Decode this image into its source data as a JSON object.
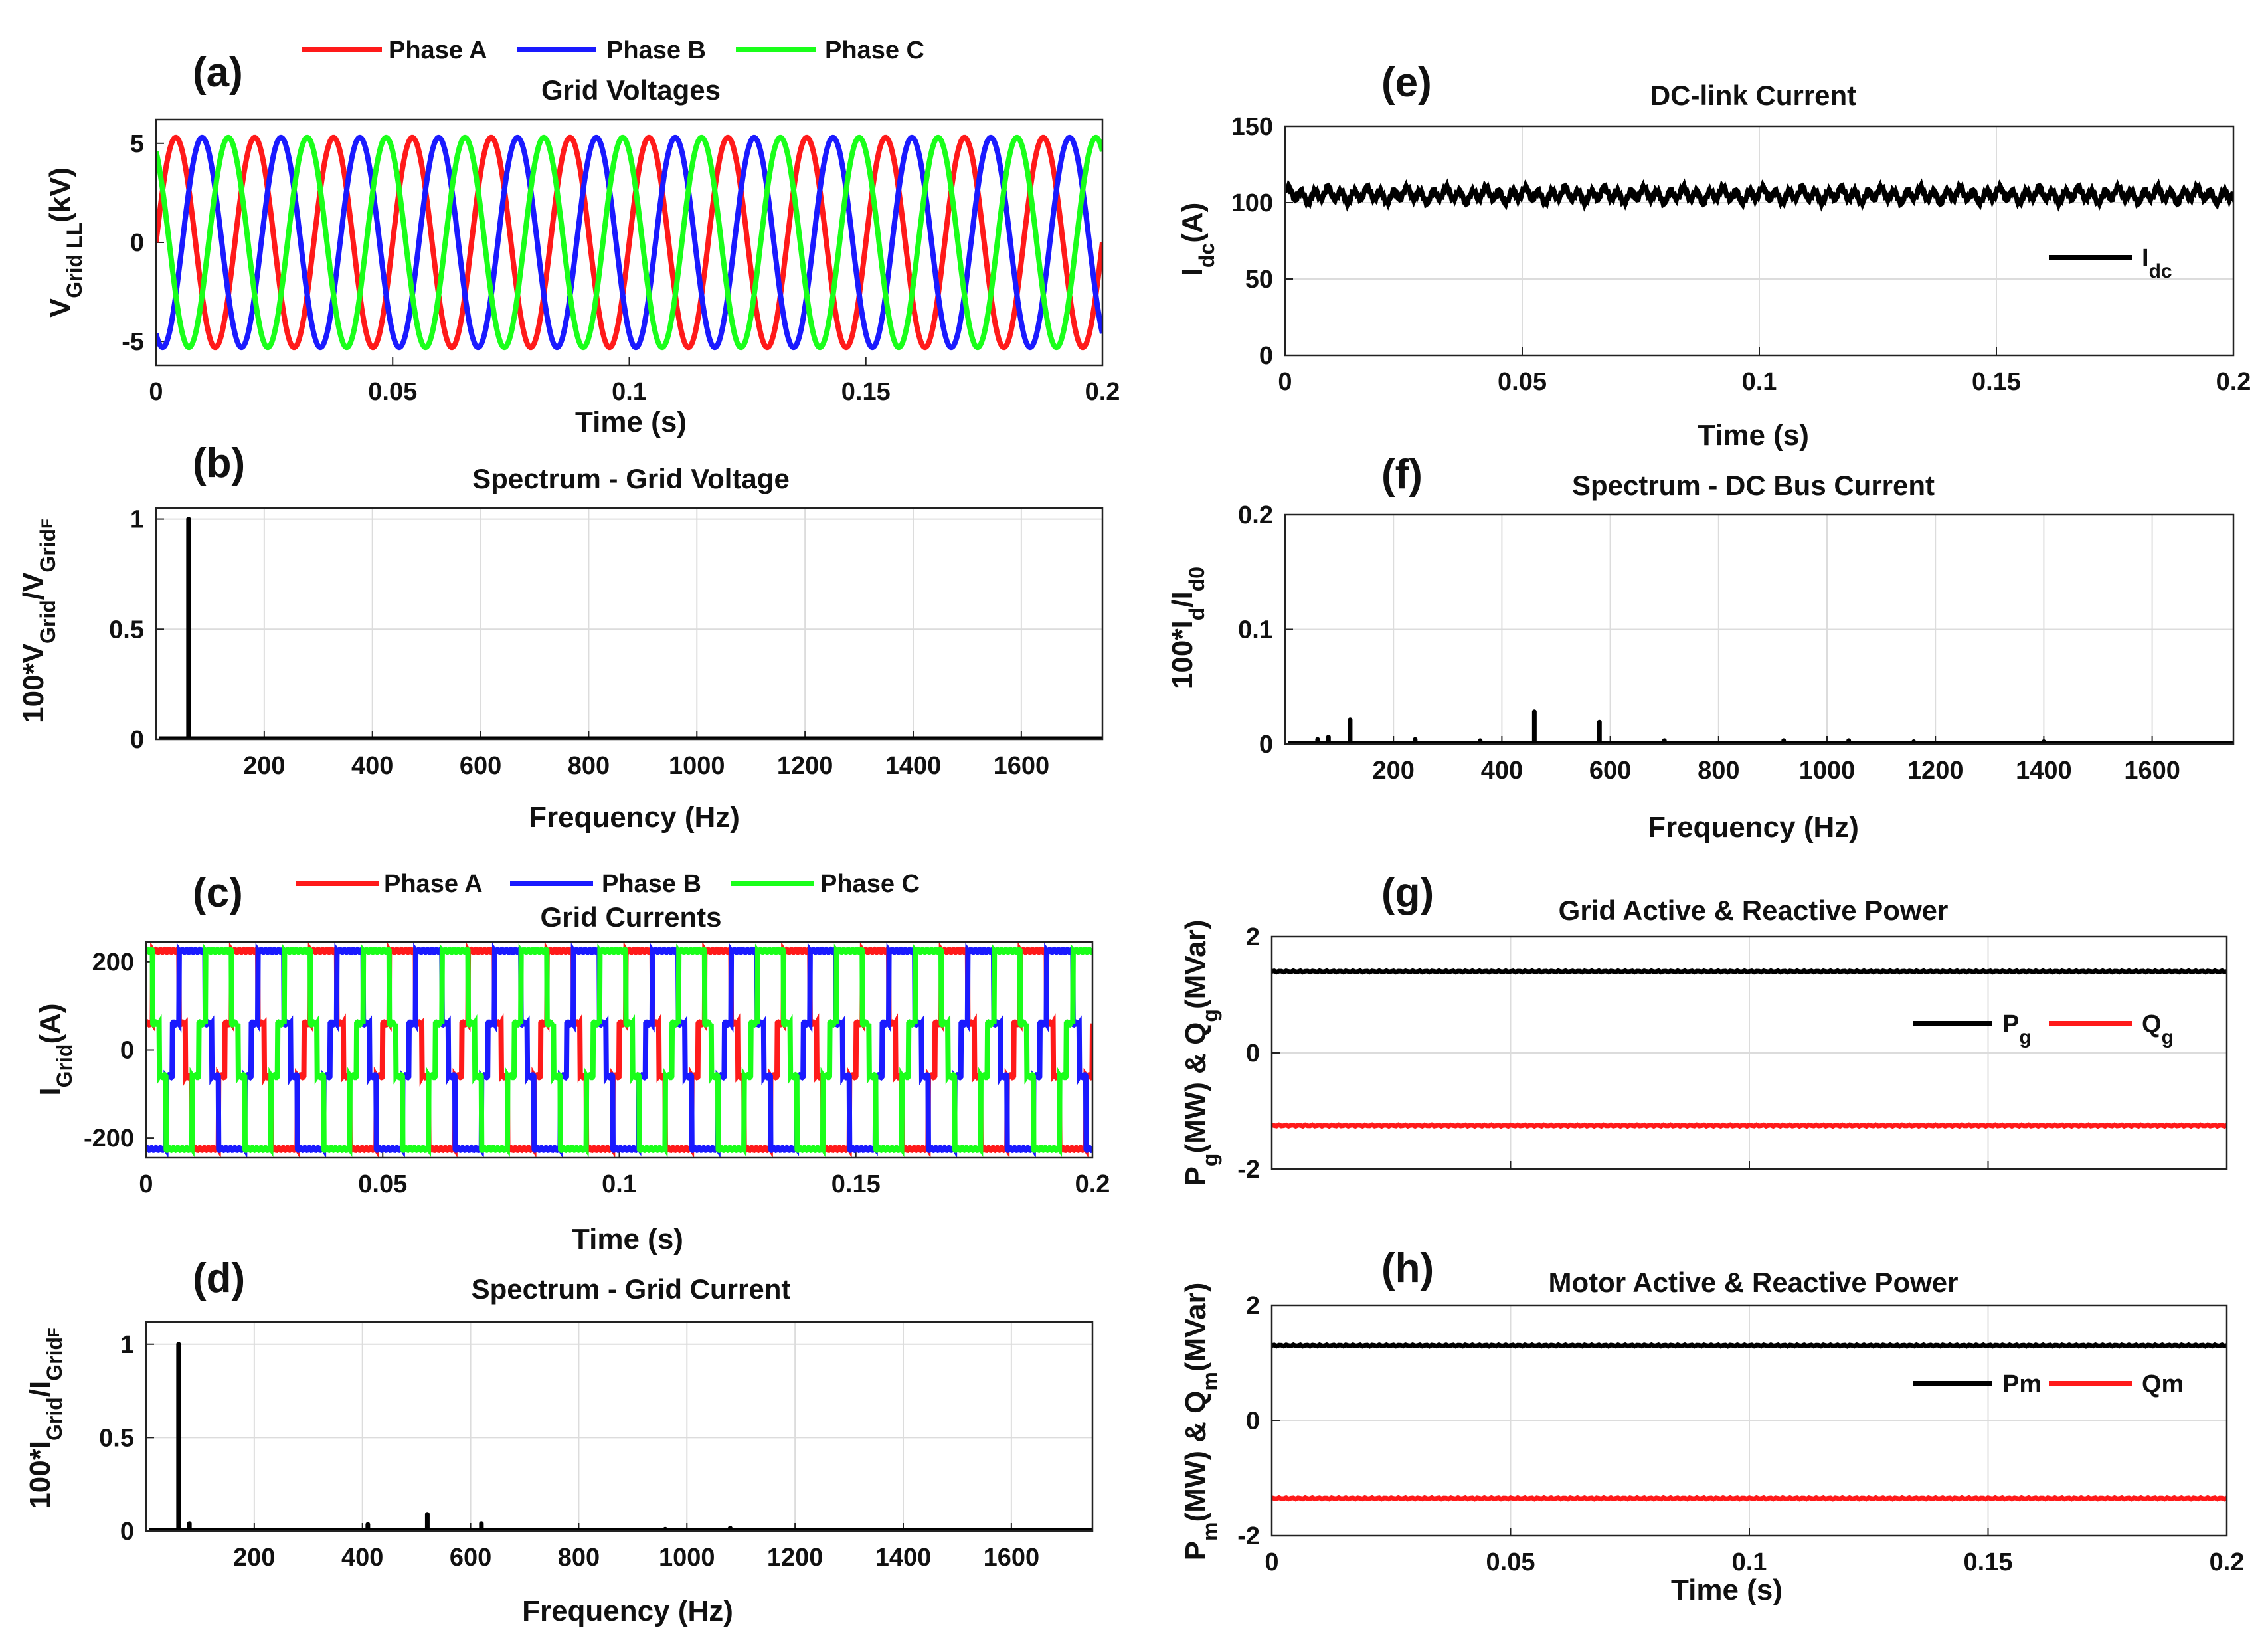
{
  "chart_data": [
    {
      "id": "a",
      "type": "line",
      "panel_label": "(a)",
      "title": "Grid Voltages",
      "ylabel": "V",
      "ylabel_sub": "Grid LL",
      "ylabel_tail": "(kV)",
      "xlabel": "Time (s)",
      "xlim": [
        0,
        0.2
      ],
      "ylim": [
        -6.2,
        6.2
      ],
      "xticks": [
        0,
        0.05,
        0.1,
        0.15,
        0.2
      ],
      "yticks": [
        -5,
        0,
        5
      ],
      "xtick_labels": [
        "0",
        "0.05",
        "0.1",
        "0.15",
        "0.2"
      ],
      "ytick_labels": [
        "-5",
        "0",
        "5"
      ],
      "grid": false,
      "signal": {
        "kind": "three_phase_sine",
        "amplitude": 5.3,
        "frequency_hz": 60,
        "phase_offsets_deg": [
          0,
          -120,
          120
        ]
      },
      "series": [
        {
          "name": "Phase A",
          "color": "#ff1a1a"
        },
        {
          "name": "Phase B",
          "color": "#1a1aff"
        },
        {
          "name": "Phase C",
          "color": "#1aff1a"
        }
      ],
      "legend_position": "top (outside, horizontal)"
    },
    {
      "id": "b",
      "type": "bar",
      "panel_label": "(b)",
      "title": "Spectrum - Grid Voltage",
      "ylabel": "100*V",
      "ylabel_sub": "Grid",
      "ylabel_mid": "/V",
      "ylabel_sub2": "Grid",
      "ylabel_sub3": "F",
      "xlabel": "Frequency (Hz)",
      "xlim": [
        0,
        1750
      ],
      "ylim": [
        0,
        1.05
      ],
      "xticks": [
        200,
        400,
        600,
        800,
        1000,
        1200,
        1400,
        1600
      ],
      "yticks": [
        0,
        0.5,
        1
      ],
      "xtick_labels": [
        "200",
        "400",
        "600",
        "800",
        "1000",
        "1200",
        "1400",
        "1600"
      ],
      "ytick_labels": [
        "0",
        "0.5",
        "1"
      ],
      "grid": true,
      "color": "#000000",
      "harmonics": [
        {
          "f": 60,
          "v": 1.0
        }
      ]
    },
    {
      "id": "c",
      "type": "line",
      "panel_label": "(c)",
      "title": "Grid Currents",
      "ylabel": "I",
      "ylabel_sub": "Grid",
      "ylabel_tail": "(A)",
      "xlabel": "Time (s)",
      "xlim": [
        0,
        0.2
      ],
      "ylim": [
        -245,
        245
      ],
      "xticks": [
        0,
        0.05,
        0.1,
        0.15,
        0.2
      ],
      "yticks": [
        -200,
        0,
        200
      ],
      "xtick_labels": [
        "0",
        "0.05",
        "0.1",
        "0.15",
        "0.2"
      ],
      "ytick_labels": [
        "-200",
        "0",
        "200"
      ],
      "grid": false,
      "signal": {
        "kind": "three_phase_six_step",
        "levels_A": [
          0,
          60,
          225
        ],
        "frequency_hz": 60,
        "phase_offsets_deg": [
          0,
          -120,
          120
        ]
      },
      "series": [
        {
          "name": "Phase A",
          "color": "#ff1a1a"
        },
        {
          "name": "Phase B",
          "color": "#1a1aff"
        },
        {
          "name": "Phase C",
          "color": "#1aff1a"
        }
      ],
      "legend_position": "top (outside, horizontal)"
    },
    {
      "id": "d",
      "type": "bar",
      "panel_label": "(d)",
      "title": "Spectrum - Grid Current",
      "ylabel": "100*I",
      "ylabel_sub": "Grid",
      "ylabel_mid": "/I",
      "ylabel_sub2": "Grid",
      "ylabel_sub3": "F",
      "xlabel": "Frequency (Hz)",
      "xlim": [
        0,
        1750
      ],
      "ylim": [
        0,
        1.12
      ],
      "xticks": [
        200,
        400,
        600,
        800,
        1000,
        1200,
        1400,
        1600
      ],
      "yticks": [
        0,
        0.5,
        1
      ],
      "xtick_labels": [
        "200",
        "400",
        "600",
        "800",
        "1000",
        "1200",
        "1400",
        "1600"
      ],
      "ytick_labels": [
        "0",
        "0.5",
        "1"
      ],
      "grid": true,
      "color": "#000000",
      "harmonics": [
        {
          "f": 60,
          "v": 1.0
        },
        {
          "f": 80,
          "v": 0.04
        },
        {
          "f": 410,
          "v": 0.035
        },
        {
          "f": 520,
          "v": 0.09
        },
        {
          "f": 620,
          "v": 0.04
        },
        {
          "f": 960,
          "v": 0.01
        },
        {
          "f": 1080,
          "v": 0.015
        }
      ]
    },
    {
      "id": "e",
      "type": "line",
      "panel_label": "(e)",
      "title": "DC-link Current",
      "ylabel": "I",
      "ylabel_sub": "dc",
      "ylabel_tail": "(A)",
      "xlabel": "Time (s)",
      "xlim": [
        0,
        0.2
      ],
      "ylim": [
        0,
        150
      ],
      "xticks": [
        0,
        0.05,
        0.1,
        0.15,
        0.2
      ],
      "yticks": [
        0,
        50,
        100,
        150
      ],
      "xtick_labels": [
        "0",
        "0.05",
        "0.1",
        "0.15",
        "0.2"
      ],
      "ytick_labels": [
        "0",
        "50",
        "100",
        "150"
      ],
      "grid": true,
      "signal": {
        "kind": "dc_with_ripple",
        "mean": 105,
        "ripple_amplitude": 6
      },
      "series": [
        {
          "name": "I",
          "name_sub": "dc",
          "color": "#000000"
        }
      ],
      "legend_position": "right, inside"
    },
    {
      "id": "f",
      "type": "bar",
      "panel_label": "(f)",
      "title": "Spectrum - DC Bus Current",
      "ylabel": "100*I",
      "ylabel_sub": "d",
      "ylabel_mid": "/I",
      "ylabel_sub2": "d0",
      "xlabel": "Frequency (Hz)",
      "xlim": [
        0,
        1750
      ],
      "ylim": [
        0,
        0.2
      ],
      "xticks": [
        200,
        400,
        600,
        800,
        1000,
        1200,
        1400,
        1600
      ],
      "yticks": [
        0,
        0.1,
        0.2
      ],
      "xtick_labels": [
        "200",
        "400",
        "600",
        "800",
        "1000",
        "1200",
        "1400",
        "1600"
      ],
      "ytick_labels": [
        "0",
        "0.1",
        "0.2"
      ],
      "grid": true,
      "color": "#000000",
      "harmonics": [
        {
          "f": 60,
          "v": 0.004
        },
        {
          "f": 80,
          "v": 0.006
        },
        {
          "f": 120,
          "v": 0.021
        },
        {
          "f": 240,
          "v": 0.004
        },
        {
          "f": 360,
          "v": 0.003
        },
        {
          "f": 460,
          "v": 0.028
        },
        {
          "f": 580,
          "v": 0.019
        },
        {
          "f": 700,
          "v": 0.003
        },
        {
          "f": 920,
          "v": 0.003
        },
        {
          "f": 1040,
          "v": 0.003
        },
        {
          "f": 1160,
          "v": 0.002
        },
        {
          "f": 1400,
          "v": 0.002
        }
      ]
    },
    {
      "id": "g",
      "type": "line",
      "panel_label": "(g)",
      "title": "Grid Active & Reactive Power",
      "ylabel": "P",
      "ylabel_sub": "g",
      "ylabel_mid": "(MW) & Q",
      "ylabel_sub2": "g",
      "ylabel_tail": "(MVar)",
      "xlabel": "",
      "xlim": [
        0,
        0.2
      ],
      "ylim": [
        -2,
        2
      ],
      "xticks": [
        0,
        0.05,
        0.1,
        0.15,
        0.2
      ],
      "yticks": [
        -2,
        0,
        2
      ],
      "xtick_labels": [],
      "ytick_labels": [
        "-2",
        "0",
        "2"
      ],
      "grid": true,
      "series": [
        {
          "name": "P",
          "name_sub": "g",
          "value": 1.4,
          "color": "#000000"
        },
        {
          "name": "Q",
          "name_sub": "g",
          "value": -1.25,
          "color": "#ff1a1a"
        }
      ],
      "legend_position": "right, inside"
    },
    {
      "id": "h",
      "type": "line",
      "panel_label": "(h)",
      "title": "Motor Active & Reactive Power",
      "ylabel": "P",
      "ylabel_sub": "m",
      "ylabel_mid": "(MW) & Q",
      "ylabel_sub2": "m",
      "ylabel_tail": "(MVar)",
      "xlabel": "Time (s)",
      "xlim": [
        0,
        0.2
      ],
      "ylim": [
        -2,
        2
      ],
      "xticks": [
        0,
        0.05,
        0.1,
        0.15,
        0.2
      ],
      "yticks": [
        -2,
        0,
        2
      ],
      "xtick_labels": [
        "0",
        "0.05",
        "0.1",
        "0.15",
        "0.2"
      ],
      "ytick_labels": [
        "-2",
        "0",
        "2"
      ],
      "grid": true,
      "series": [
        {
          "name": "Pm",
          "value": 1.3,
          "color": "#000000"
        },
        {
          "name": "Qm",
          "value": -1.35,
          "color": "#ff1a1a"
        }
      ],
      "legend_position": "right, inside"
    }
  ]
}
